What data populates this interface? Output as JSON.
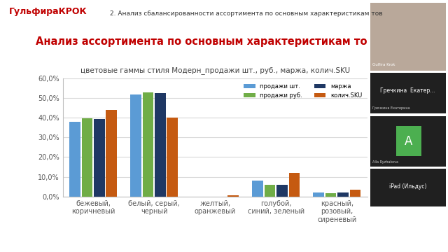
{
  "chart_data": {
    "type": "bar",
    "title": "цветовые гаммы стиля Модерн_продажи шт., руб., маржа, колич.SKU",
    "annotations": [
      "ГульфираКРОК",
      "2. Анализ сбалансированности ассортимента по основным характеристикам тов",
      "Анализ ассортимента по основным характеристикам то",
      "Gulfira Krok",
      "Гречкина  Екатер...",
      "Гречкина Екатерина",
      "A",
      "Alla Ryzhakova",
      "iPad (Ильдус)"
    ],
    "categories": [
      "бежевый, коричневый",
      "белый, серый, черный",
      "желтый, оранжевый",
      "голубой, синий, зеленый",
      "красный, розовый, сиреневый"
    ],
    "series": [
      {
        "name": "продажи шт.",
        "color": "#5b9bd5",
        "values": [
          37.7,
          51.8,
          0.0,
          8.0,
          2.2
        ]
      },
      {
        "name": "продажи руб.",
        "color": "#70ad47",
        "values": [
          39.5,
          52.7,
          0.0,
          6.0,
          1.7
        ]
      },
      {
        "name": "маржа",
        "color": "#1f3864",
        "values": [
          39.3,
          52.3,
          0.0,
          5.8,
          2.0
        ]
      },
      {
        "name": "колич.SKU",
        "color": "#c55a11",
        "values": [
          44.0,
          40.0,
          0.6,
          12.0,
          3.3
        ]
      }
    ],
    "ylim": [
      0,
      60
    ],
    "yticks": [
      {
        "value": 0,
        "label": "0,0%"
      },
      {
        "value": 10,
        "label": "10,0%"
      },
      {
        "value": 20,
        "label": "20,0%"
      },
      {
        "value": 30,
        "label": "30,0%"
      },
      {
        "value": 40,
        "label": "40,0%"
      },
      {
        "value": 50,
        "label": "50,0%"
      },
      {
        "value": 60,
        "label": "60,0%"
      }
    ],
    "grid": true,
    "legend": "upper right"
  }
}
